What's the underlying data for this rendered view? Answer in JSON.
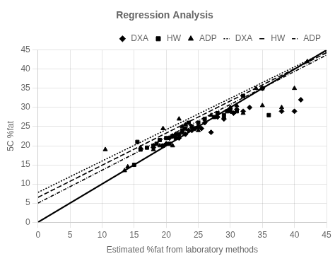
{
  "chart_data": {
    "type": "scatter",
    "title": "Regression Analysis",
    "x_label": "Estimated %fat from laboratory methods",
    "y_label": "5C %fat",
    "xlim": [
      0,
      45
    ],
    "ylim": [
      0,
      45
    ],
    "xticks": [
      0,
      5,
      10,
      15,
      20,
      25,
      30,
      35,
      40,
      45
    ],
    "yticks": [
      0,
      5,
      10,
      15,
      20,
      25,
      30,
      35,
      40,
      45
    ],
    "grid": true,
    "legend": "top",
    "series": [
      {
        "type": "line",
        "line_style": "solid",
        "color": "black",
        "x": [
          0,
          45
        ],
        "values": [
          0,
          45
        ]
      },
      {
        "name": "DXA",
        "type": "scatter",
        "marker": "diamond",
        "color": "black",
        "x": [
          18.0,
          19.5,
          20.0,
          20.5,
          21.0,
          21.5,
          22.0,
          22.5,
          23.0,
          23.5,
          24.0,
          24.5,
          25.0,
          25.5,
          26.0,
          27.0,
          28.0,
          29.0,
          30.0,
          30.5,
          31.0,
          32.0,
          33.0,
          35.0,
          38.0,
          40.0,
          41.0
        ],
        "values": [
          19.5,
          20.0,
          20.5,
          22.0,
          22.5,
          23.0,
          22.0,
          23.5,
          23.0,
          24.0,
          24.0,
          24.5,
          25.0,
          24.5,
          26.0,
          23.5,
          27.5,
          27.0,
          29.0,
          28.5,
          29.5,
          29.0,
          30.0,
          35.0,
          29.0,
          29.0,
          32.0
        ]
      },
      {
        "name": "HW",
        "type": "scatter",
        "marker": "square",
        "color": "black",
        "x": [
          15.0,
          15.5,
          16.0,
          17.0,
          18.0,
          18.5,
          19.0,
          19.5,
          20.0,
          20.5,
          21.0,
          21.5,
          22.0,
          22.5,
          23.0,
          23.5,
          24.0,
          25.0,
          26.0,
          27.5,
          28.0,
          29.0,
          29.5,
          30.0,
          31.0,
          32.0,
          35.0,
          36.0
        ],
        "values": [
          15.0,
          21.0,
          19.0,
          19.5,
          20.0,
          20.5,
          21.5,
          20.0,
          22.0,
          20.5,
          22.5,
          22.0,
          23.0,
          24.0,
          24.5,
          26.0,
          25.0,
          26.0,
          27.0,
          27.5,
          28.5,
          28.0,
          29.0,
          29.5,
          29.0,
          33.0,
          35.0,
          28.0
        ]
      },
      {
        "name": "ADP",
        "type": "scatter",
        "marker": "triangle",
        "color": "black",
        "x": [
          10.5,
          13.5,
          14.0,
          16.0,
          18.0,
          19.0,
          19.5,
          20.0,
          21.0,
          22.0,
          22.5,
          23.0,
          24.0,
          25.0,
          27.0,
          29.0,
          30.0,
          31.0,
          32.0,
          34.0,
          35.0,
          38.0,
          40.0,
          42.0
        ],
        "values": [
          19.0,
          13.5,
          14.5,
          19.5,
          19.0,
          20.0,
          24.5,
          20.5,
          20.0,
          27.0,
          25.0,
          25.5,
          25.0,
          24.0,
          28.0,
          27.5,
          30.0,
          30.5,
          28.5,
          35.0,
          30.5,
          30.0,
          35.0,
          42.0
        ]
      },
      {
        "name": "DXA",
        "type": "line",
        "line_style": "dotted",
        "color": "black",
        "x": [
          0,
          45
        ],
        "values": [
          7.8,
          44.7
        ]
      },
      {
        "name": "HW",
        "type": "line",
        "line_style": "dashed",
        "color": "black",
        "x": [
          0,
          45
        ],
        "values": [
          6.5,
          44.3
        ]
      },
      {
        "name": "ADP",
        "type": "line",
        "line_style": "dashdot",
        "color": "black",
        "x": [
          0,
          45
        ],
        "values": [
          5.0,
          43.7
        ]
      }
    ]
  }
}
